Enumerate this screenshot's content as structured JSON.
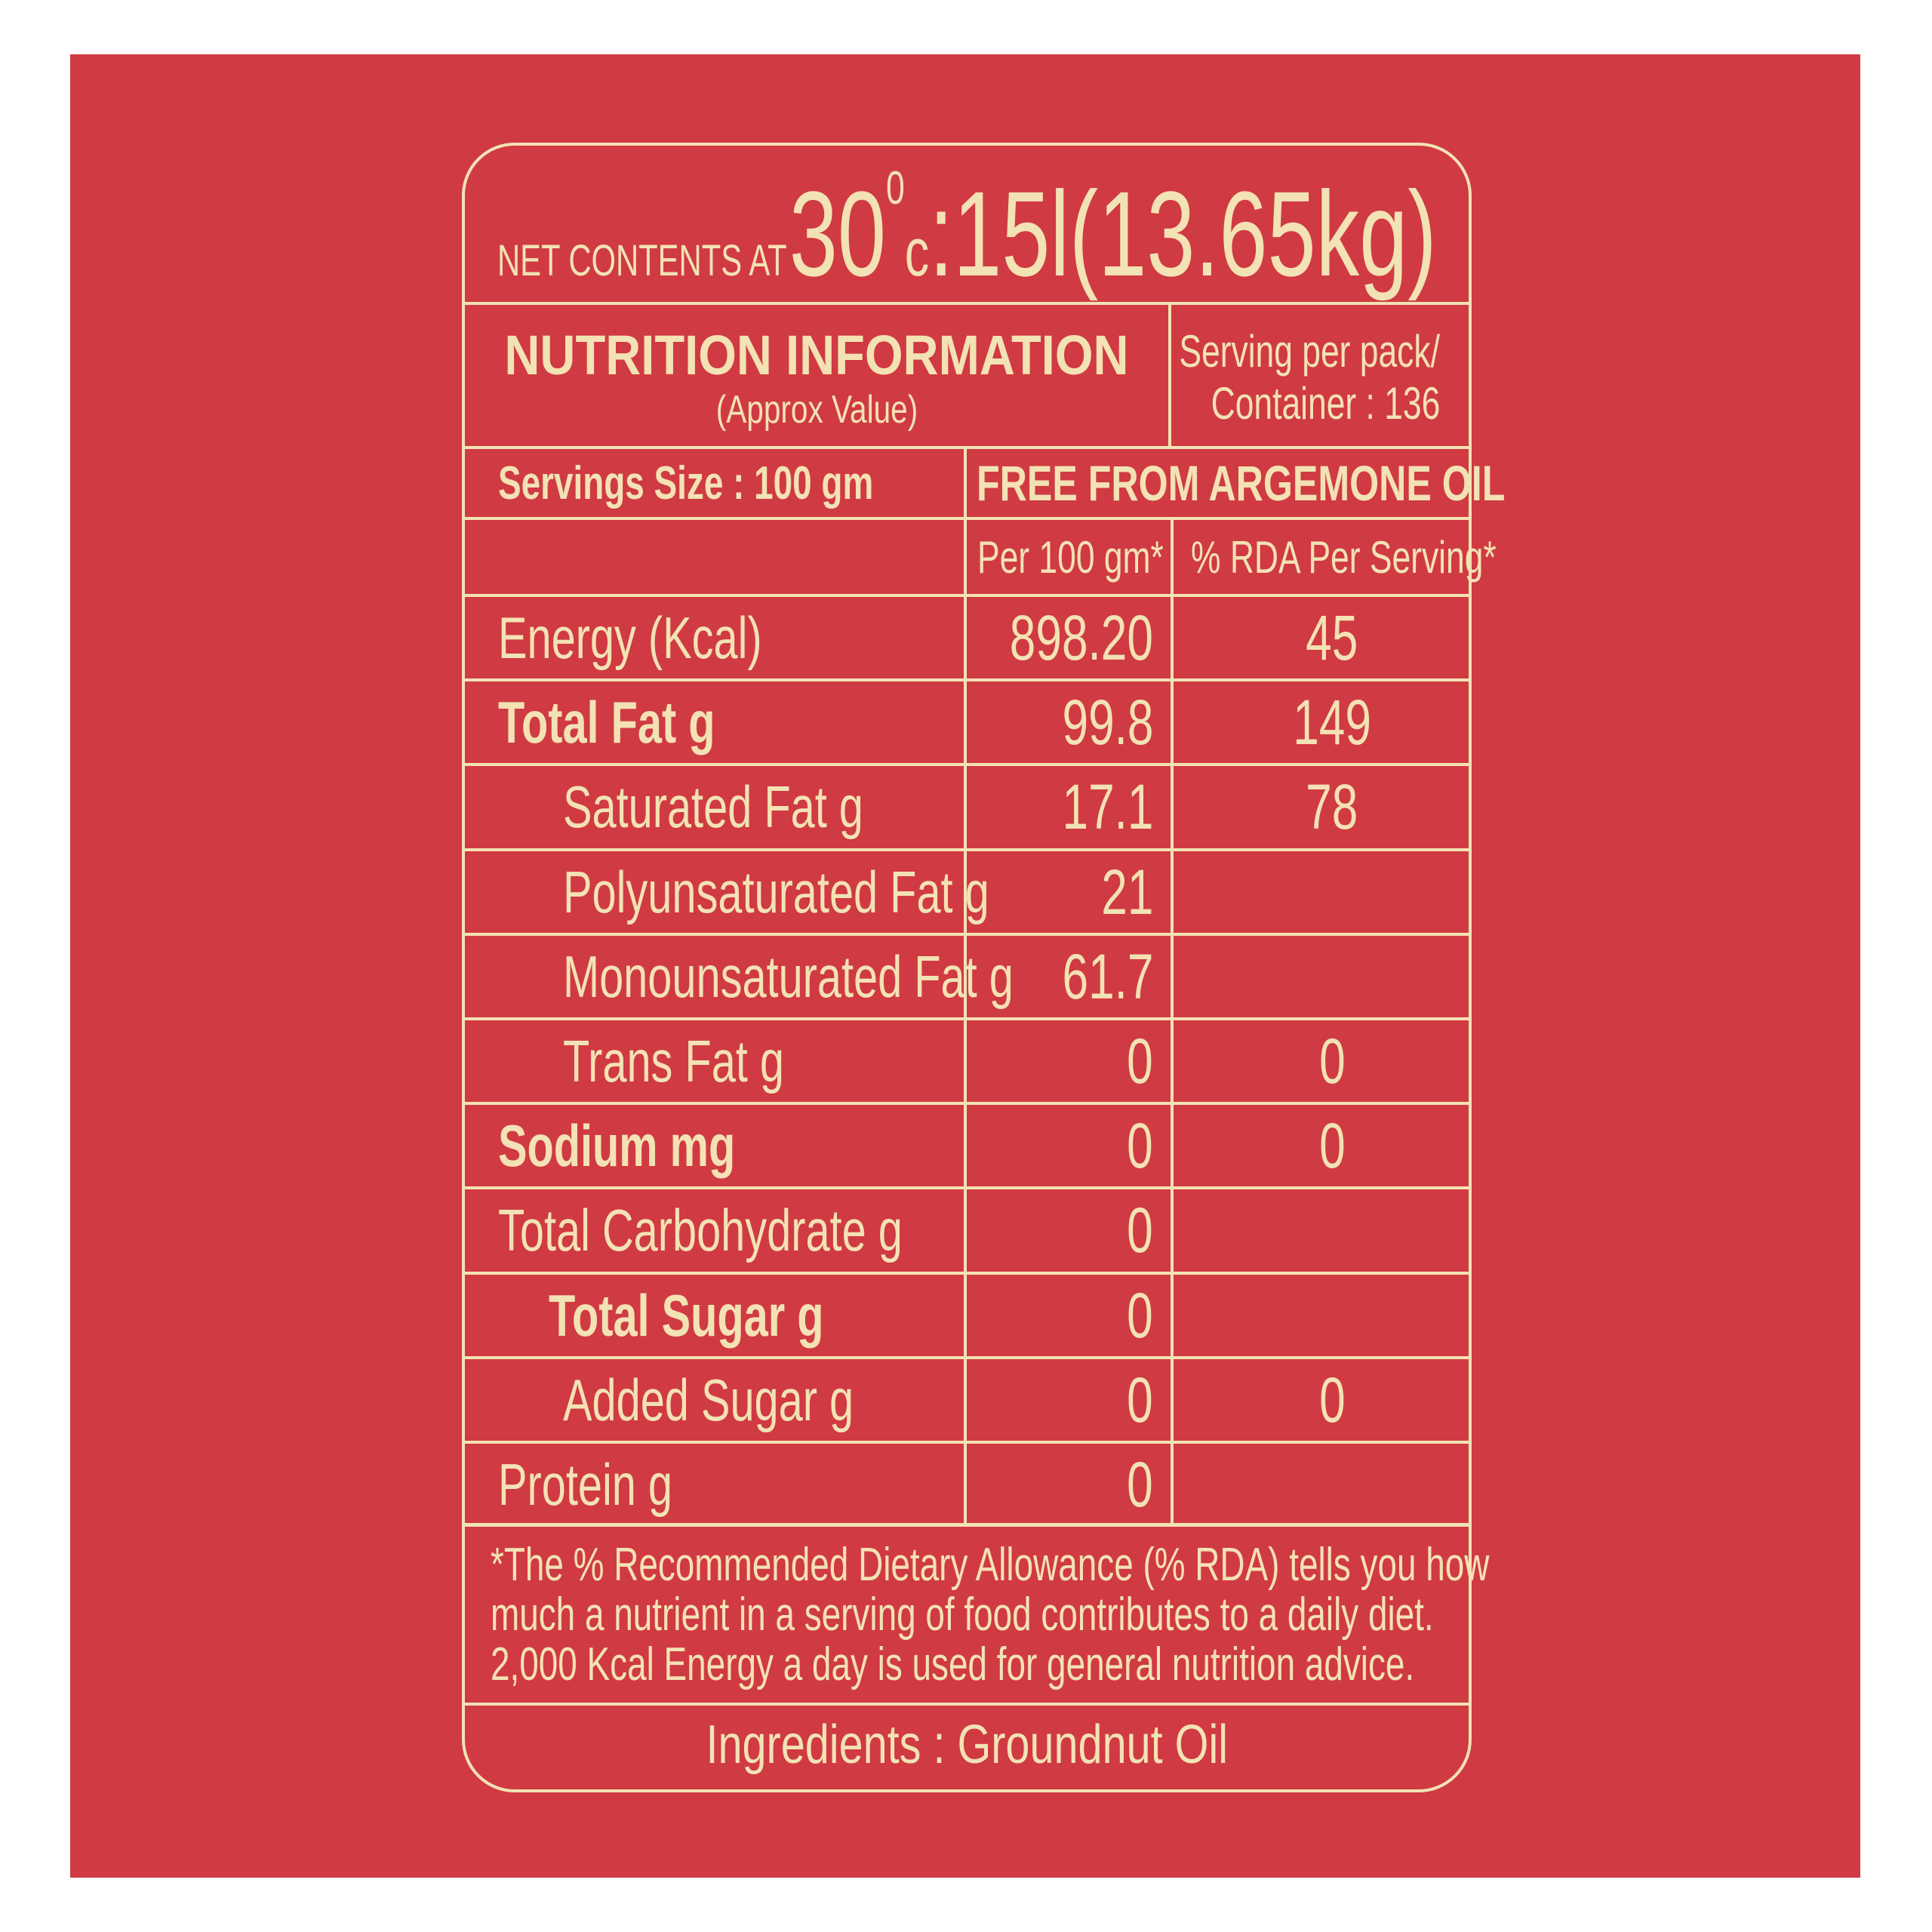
{
  "colors": {
    "background": "#d03a43",
    "text": "#f3e2b4"
  },
  "net_contents": {
    "label": "NET CONTENTS AT",
    "temp": "30",
    "degree": "0",
    "unit": "c",
    "value": ":15l(13.65kg)"
  },
  "header": {
    "title": "NUTRITION INFORMATION",
    "subtitle": "(Approx Value)",
    "serving_line1": "Serving per pack/",
    "serving_line2": "Container : 136"
  },
  "serving_size": "Servings Size : 100 gm",
  "claim": "FREE FROM ARGEMONE OIL",
  "columns": {
    "per100": "Per 100 gm*",
    "rda": "% RDA Per Serving*"
  },
  "rows": [
    {
      "label": "Energy (Kcal)",
      "per100": "898.20",
      "rda": "45"
    },
    {
      "label": "Total Fat g",
      "per100": "99.8",
      "rda": "149"
    },
    {
      "label": "Saturated Fat g",
      "per100": "17.1",
      "rda": "78"
    },
    {
      "label": "Polyunsaturated Fat g",
      "per100": "21",
      "rda": ""
    },
    {
      "label": "Monounsaturated Fat g",
      "per100": "61.7",
      "rda": ""
    },
    {
      "label": "Trans Fat g",
      "per100": "0",
      "rda": "0"
    },
    {
      "label": "Sodium mg",
      "per100": "0",
      "rda": "0"
    },
    {
      "label": "Total Carbohydrate g",
      "per100": "0",
      "rda": ""
    },
    {
      "label": "Total Sugar g",
      "per100": "0",
      "rda": ""
    },
    {
      "label": "Added Sugar g",
      "per100": "0",
      "rda": "0"
    },
    {
      "label": "Protein g",
      "per100": "0",
      "rda": ""
    }
  ],
  "footnote": {
    "line1": "*The % Recommended Dietary Allowance (% RDA) tells you how",
    "line2": "much a nutrient in a serving of food contributes to a daily diet.",
    "line3": "2,000 Kcal Energy a day is used for general nutrition advice."
  },
  "ingredients": "Ingredients : Groundnut Oil"
}
